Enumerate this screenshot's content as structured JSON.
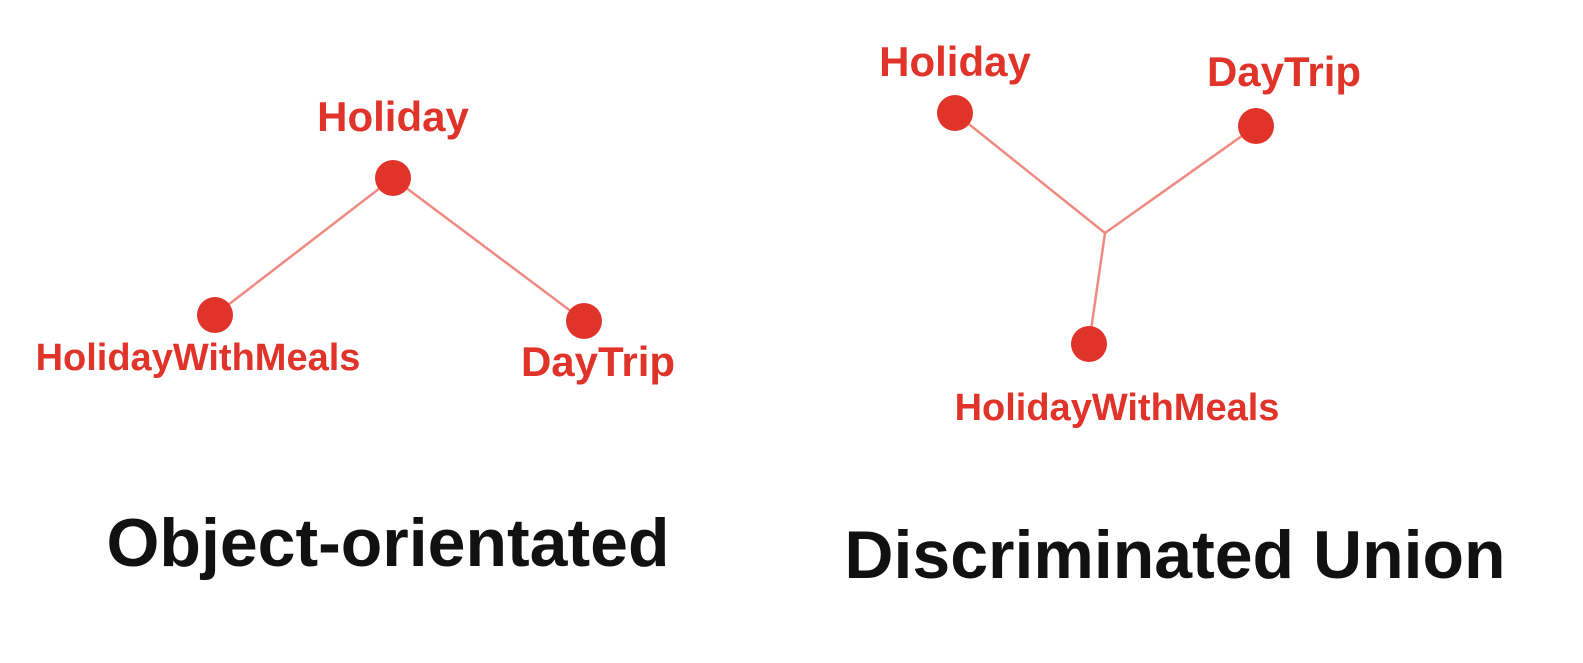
{
  "colors": {
    "node": "#e0332a",
    "edge": "#f08a80",
    "label": "#e0332a",
    "caption": "#111111",
    "background": "#ffffff"
  },
  "diagrams": {
    "object_oriented": {
      "caption": "Object-orientated",
      "nodes": {
        "holiday": "Holiday",
        "holiday_with_meals": "HolidayWithMeals",
        "day_trip": "DayTrip"
      }
    },
    "discriminated_union": {
      "caption": "Discriminated Union",
      "nodes": {
        "holiday": "Holiday",
        "day_trip": "DayTrip",
        "holiday_with_meals": "HolidayWithMeals"
      }
    }
  }
}
